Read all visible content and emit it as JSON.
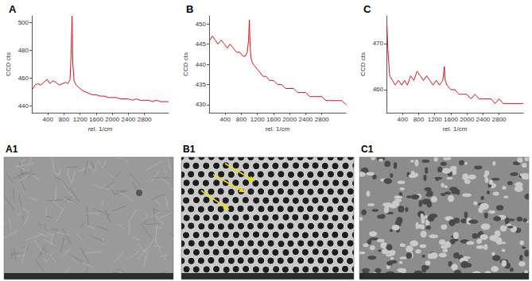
{
  "chart_data": [
    {
      "type": "line",
      "title": "A",
      "xlabel": "rel. 1/cm",
      "ylabel": "CCD cts",
      "color": "#e0101a",
      "grid": false,
      "x": [
        20,
        80,
        150,
        220,
        300,
        380,
        450,
        520,
        600,
        680,
        760,
        840,
        900,
        950,
        980,
        1000,
        1020,
        1050,
        1100,
        1180,
        1260,
        1340,
        1420,
        1500,
        1600,
        1700,
        1800,
        1900,
        2000,
        2100,
        2200,
        2300,
        2400,
        2500,
        2600,
        2700,
        2800,
        2900,
        3000,
        3100,
        3200,
        3300,
        3400
      ],
      "values": [
        452,
        455,
        456,
        455,
        457,
        459,
        456,
        458,
        457,
        455,
        456,
        457,
        456,
        459,
        480,
        505,
        470,
        458,
        455,
        453,
        451,
        450,
        449,
        448,
        448,
        447,
        447,
        446,
        446,
        446,
        445,
        445,
        445,
        444,
        445,
        444,
        444,
        444,
        443,
        444,
        443,
        443,
        443
      ],
      "xlim": [
        0,
        3400
      ],
      "xticks": [
        400,
        800,
        1200,
        1600,
        2000,
        2400,
        2800
      ],
      "ylim": [
        435,
        505
      ],
      "yticks": [
        440,
        460,
        480,
        500
      ]
    },
    {
      "type": "line",
      "title": "B",
      "xlabel": "rel. 1/cm",
      "ylabel": "CCD cts",
      "color": "#e0101a",
      "grid": false,
      "x": [
        20,
        80,
        150,
        220,
        300,
        380,
        450,
        520,
        600,
        680,
        760,
        840,
        900,
        950,
        980,
        1000,
        1020,
        1050,
        1100,
        1180,
        1260,
        1340,
        1420,
        1500,
        1600,
        1700,
        1800,
        1900,
        2000,
        2100,
        2200,
        2300,
        2400,
        2500,
        2600,
        2700,
        2800,
        2900,
        3000,
        3100,
        3200,
        3300,
        3400
      ],
      "values": [
        446,
        447,
        446,
        445,
        446,
        445,
        444,
        445,
        444,
        443,
        443,
        442,
        442,
        443,
        446,
        451,
        444,
        441,
        440,
        439,
        438,
        437,
        437,
        436,
        436,
        435,
        435,
        434,
        434,
        434,
        433,
        433,
        433,
        432,
        432,
        432,
        432,
        431,
        431,
        431,
        431,
        431,
        430
      ],
      "xlim": [
        0,
        3400
      ],
      "xticks": [
        400,
        800,
        1200,
        1600,
        2000,
        2400,
        2800
      ],
      "ylim": [
        428,
        452
      ],
      "yticks": [
        430,
        435,
        440,
        445,
        450
      ]
    },
    {
      "type": "line",
      "title": "C",
      "xlabel": "rel. 1/cm",
      "ylabel": "CCD cts",
      "color": "#e0101a",
      "grid": false,
      "x": [
        10,
        40,
        80,
        150,
        220,
        300,
        380,
        450,
        520,
        600,
        680,
        760,
        840,
        920,
        1000,
        1080,
        1160,
        1240,
        1320,
        1400,
        1440,
        1460,
        1500,
        1600,
        1700,
        1800,
        1900,
        2000,
        2100,
        2200,
        2300,
        2400,
        2500,
        2600,
        2700,
        2800,
        2900,
        3000,
        3100,
        3200,
        3300,
        3400
      ],
      "values": [
        474,
        468,
        463,
        462,
        461,
        462,
        461,
        462,
        461,
        463,
        462,
        464,
        463,
        462,
        463,
        462,
        461,
        462,
        461,
        462,
        465,
        462,
        461,
        460,
        460,
        459,
        459,
        459,
        458,
        459,
        458,
        458,
        458,
        458,
        457,
        458,
        457,
        457,
        457,
        457,
        457,
        457
      ],
      "xlim": [
        0,
        3400
      ],
      "xticks": [
        400,
        800,
        1200,
        1600,
        2000,
        2400,
        2800
      ],
      "ylim": [
        455,
        476
      ],
      "yticks": [
        460,
        470
      ]
    }
  ],
  "images": [
    {
      "label": "A1"
    },
    {
      "label": "B1"
    },
    {
      "label": "C1"
    }
  ]
}
